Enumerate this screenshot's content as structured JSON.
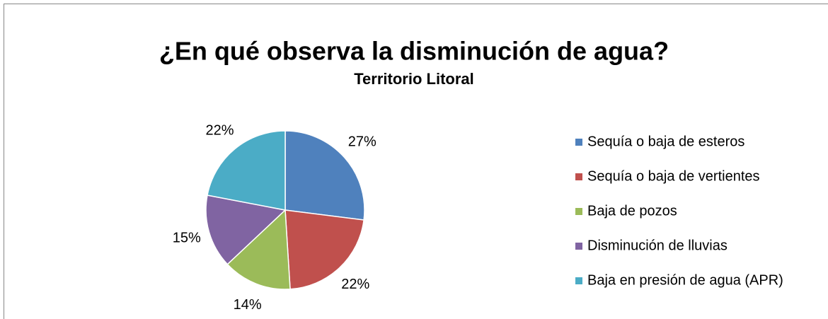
{
  "chart_data": {
    "type": "pie",
    "title": "¿En qué observa la disminución de agua?",
    "subtitle": "Territorio Litoral",
    "categories": [
      "Sequía o baja de esteros",
      "Sequía o baja de vertientes",
      "Baja de pozos",
      "Disminución de lluvias",
      "Baja en presión de agua (APR)"
    ],
    "values": [
      27,
      22,
      14,
      15,
      22
    ],
    "value_labels": [
      "27%",
      "22%",
      "14%",
      "15%",
      "22%"
    ],
    "colors": [
      "#4f81bd",
      "#c0504d",
      "#9bbb59",
      "#8064a2",
      "#4bacc6"
    ],
    "legend": "right"
  }
}
